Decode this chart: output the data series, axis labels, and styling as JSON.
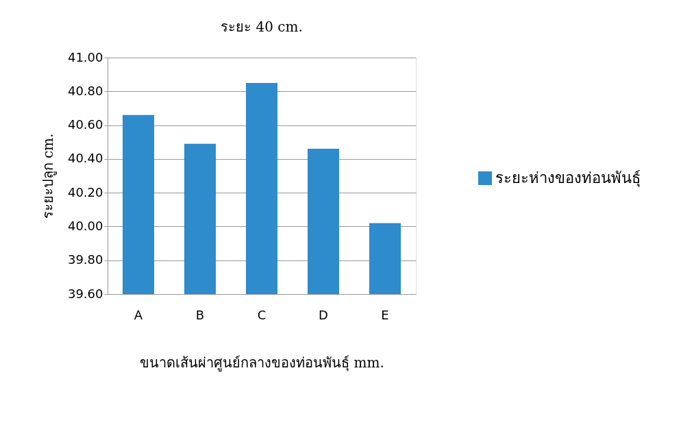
{
  "chart_data": {
    "type": "bar",
    "title": "ระยะ 40 cm.",
    "xlabel": "ขนาดเส้นผ่าศูนย์กลางของท่อนพันธุ์ mm.",
    "ylabel": "ระยะปลูก cm.",
    "categories": [
      "A",
      "B",
      "C",
      "D",
      "E"
    ],
    "series": [
      {
        "name": "ระยะห่างของท่อนพันธุ์",
        "color": "#2e8bcc",
        "values": [
          40.66,
          40.49,
          40.85,
          40.46,
          40.02
        ]
      }
    ],
    "ylim": [
      39.6,
      41.0
    ],
    "yticks": [
      {
        "value": 39.6,
        "label": "39.60"
      },
      {
        "value": 39.8,
        "label": "39.80"
      },
      {
        "value": 40.0,
        "label": "40.00"
      },
      {
        "value": 40.2,
        "label": "40.20"
      },
      {
        "value": 40.4,
        "label": "40.40"
      },
      {
        "value": 40.6,
        "label": "40.60"
      },
      {
        "value": 40.8,
        "label": "40.80"
      },
      {
        "value": 41.0,
        "label": "41.00"
      }
    ],
    "grid": "y",
    "legend": "right"
  }
}
